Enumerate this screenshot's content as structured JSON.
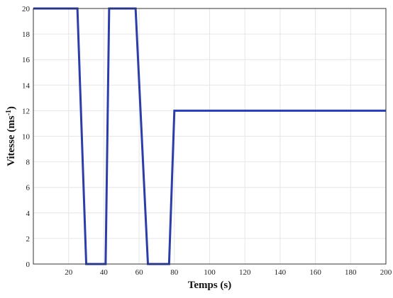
{
  "chart_data": {
    "type": "line",
    "xlabel": "Temps (s)",
    "ylabel_main": "Vitesse (ms",
    "ylabel_sup": "-1",
    "ylabel_close": ")",
    "xlim": [
      0,
      200
    ],
    "ylim": [
      0,
      20
    ],
    "xticks": [
      20,
      40,
      60,
      80,
      100,
      120,
      140,
      160,
      180,
      200
    ],
    "yticks": [
      0,
      2,
      4,
      6,
      8,
      10,
      12,
      14,
      16,
      18,
      20
    ],
    "grid": true,
    "series": [
      {
        "color": "#2b3ea8",
        "x": [
          0,
          25,
          30,
          41,
          43,
          58,
          65,
          77,
          80,
          200
        ],
        "y": [
          20,
          20,
          0,
          0,
          20,
          20,
          0,
          0,
          12,
          12
        ]
      }
    ]
  }
}
